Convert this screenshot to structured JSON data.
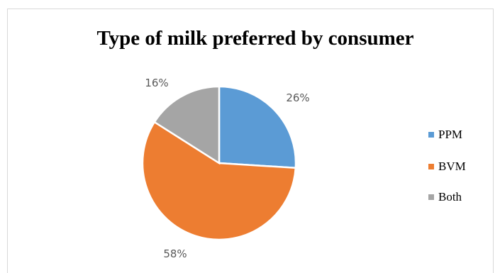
{
  "chart_data": {
    "type": "pie",
    "title": "Type of milk preferred by consumer",
    "categories": [
      "PPM",
      "BVM",
      "Both"
    ],
    "values": [
      26,
      58,
      16
    ],
    "labels": [
      "26%",
      "58%",
      "16%"
    ],
    "colors": [
      "#5B9BD5",
      "#ED7D31",
      "#A5A5A5"
    ],
    "legend_position": "right"
  }
}
